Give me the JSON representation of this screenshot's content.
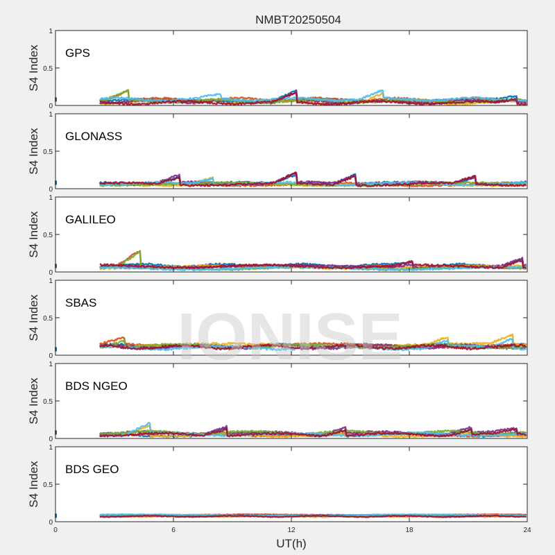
{
  "figure": {
    "title": "NMBT20250504",
    "xlabel": "UT(h)",
    "ylabel": "S4 Index",
    "watermark": "IONISE"
  },
  "colors": [
    "#0072BD",
    "#D95319",
    "#EDB120",
    "#7E2F8E",
    "#77AC30",
    "#4DBEEE",
    "#A2142F"
  ],
  "chart_data": [
    {
      "type": "scatter",
      "panel": "GPS",
      "title": "GPS",
      "xlabel": "UT(h)",
      "ylabel": "S4 Index",
      "xlim": [
        0,
        24
      ],
      "ylim": [
        0,
        1
      ],
      "xticks": [
        0,
        6,
        12,
        18,
        24
      ],
      "xticklabels": [
        "0",
        "6",
        "12",
        "18",
        "24"
      ],
      "yticks": [
        0,
        0.5,
        1
      ],
      "yticklabels": [
        "0",
        "0.5",
        "1"
      ],
      "grid": false,
      "data_start": 2.25,
      "data_end": 24,
      "base": 0.06,
      "spread": 0.05,
      "peaks": [
        [
          3.7,
          0.19
        ],
        [
          12.3,
          0.19
        ],
        [
          16.7,
          0.17
        ],
        [
          8.4,
          0.12
        ],
        [
          23.5,
          0.12
        ]
      ]
    },
    {
      "type": "scatter",
      "panel": "GLONASS",
      "title": "GLONASS",
      "xlabel": "UT(h)",
      "ylabel": "S4 Index",
      "xlim": [
        0,
        24
      ],
      "ylim": [
        0,
        1
      ],
      "xticks": [
        0,
        6,
        12,
        18,
        24
      ],
      "xticklabels": [
        "0",
        "6",
        "12",
        "18",
        "24"
      ],
      "yticks": [
        0,
        0.5,
        1
      ],
      "yticklabels": [
        "0",
        "0.5",
        "1"
      ],
      "grid": false,
      "data_start": 2.25,
      "data_end": 24,
      "base": 0.05,
      "spread": 0.05,
      "peaks": [
        [
          6.3,
          0.15
        ],
        [
          8.0,
          0.13
        ],
        [
          12.3,
          0.19
        ],
        [
          15.3,
          0.18
        ],
        [
          21.4,
          0.16
        ]
      ]
    },
    {
      "type": "scatter",
      "panel": "GALILEO",
      "title": "GALILEO",
      "xlabel": "UT(h)",
      "ylabel": "S4 Index",
      "xlim": [
        0,
        24
      ],
      "ylim": [
        0,
        1
      ],
      "xticks": [
        0,
        6,
        12,
        18,
        24
      ],
      "xticklabels": [
        "0",
        "6",
        "12",
        "18",
        "24"
      ],
      "yticks": [
        0,
        0.5,
        1
      ],
      "yticklabels": [
        "0",
        "0.5",
        "1"
      ],
      "grid": false,
      "data_start": 2.25,
      "data_end": 24,
      "base": 0.07,
      "spread": 0.05,
      "peaks": [
        [
          4.3,
          0.27
        ],
        [
          23.8,
          0.17
        ],
        [
          18.2,
          0.12
        ]
      ]
    },
    {
      "type": "scatter",
      "panel": "SBAS",
      "title": "SBAS",
      "xlabel": "UT(h)",
      "ylabel": "S4 Index",
      "xlim": [
        0,
        24
      ],
      "ylim": [
        0,
        1
      ],
      "xticks": [
        0,
        6,
        12,
        18,
        24
      ],
      "xticklabels": [
        "0",
        "6",
        "12",
        "18",
        "24"
      ],
      "yticks": [
        0,
        0.5,
        1
      ],
      "yticklabels": [
        "0",
        "0.5",
        "1"
      ],
      "grid": false,
      "data_start": 2.25,
      "data_end": 24,
      "base": 0.11,
      "spread": 0.06,
      "peaks": [
        [
          3.5,
          0.2
        ],
        [
          23.3,
          0.25
        ],
        [
          20.0,
          0.2
        ]
      ]
    },
    {
      "type": "scatter",
      "panel": "BDS NGEO",
      "title": "BDS NGEO",
      "xlabel": "UT(h)",
      "ylabel": "S4 Index",
      "xlim": [
        0,
        24
      ],
      "ylim": [
        0,
        1
      ],
      "xticks": [
        0,
        6,
        12,
        18,
        24
      ],
      "xticklabels": [
        "0",
        "6",
        "12",
        "18",
        "24"
      ],
      "yticks": [
        0,
        0.5,
        1
      ],
      "yticklabels": [
        "0",
        "0.5",
        "1"
      ],
      "grid": false,
      "data_start": 2.25,
      "data_end": 24,
      "base": 0.06,
      "spread": 0.05,
      "peaks": [
        [
          4.8,
          0.2
        ],
        [
          8.7,
          0.15
        ],
        [
          14.8,
          0.14
        ],
        [
          21.2,
          0.14
        ],
        [
          23.5,
          0.12
        ]
      ]
    },
    {
      "type": "scatter",
      "panel": "BDS GEO",
      "title": "BDS GEO",
      "xlabel": "UT(h)",
      "ylabel": "S4 Index",
      "xlim": [
        0,
        24
      ],
      "ylim": [
        0,
        1
      ],
      "xticks": [
        0,
        6,
        12,
        18,
        24
      ],
      "xticklabels": [
        "0",
        "6",
        "12",
        "18",
        "24"
      ],
      "yticks": [
        0,
        0.5,
        1
      ],
      "yticklabels": [
        "0",
        "0.5",
        "1"
      ],
      "grid": false,
      "data_start": 2.25,
      "data_end": 24,
      "base": 0.08,
      "spread": 0.02,
      "peaks": []
    }
  ]
}
